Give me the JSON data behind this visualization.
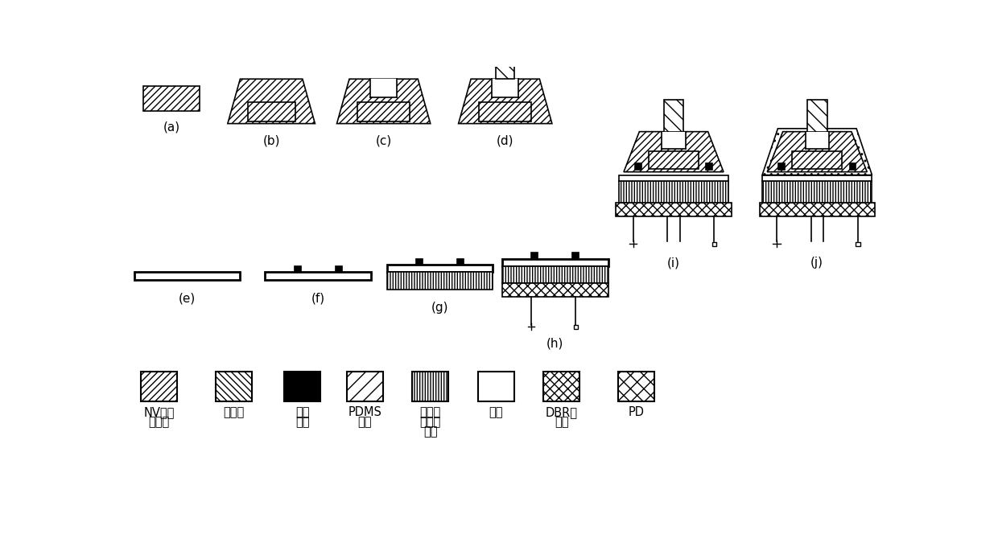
{
  "background": "#ffffff",
  "labels": {
    "a": "(a)",
    "b": "(b)",
    "c": "(c)",
    "d": "(d)",
    "e": "(e)",
    "f": "(f)",
    "g": "(g)",
    "h": "(h)",
    "i": "(i)",
    "j": "(j)"
  }
}
